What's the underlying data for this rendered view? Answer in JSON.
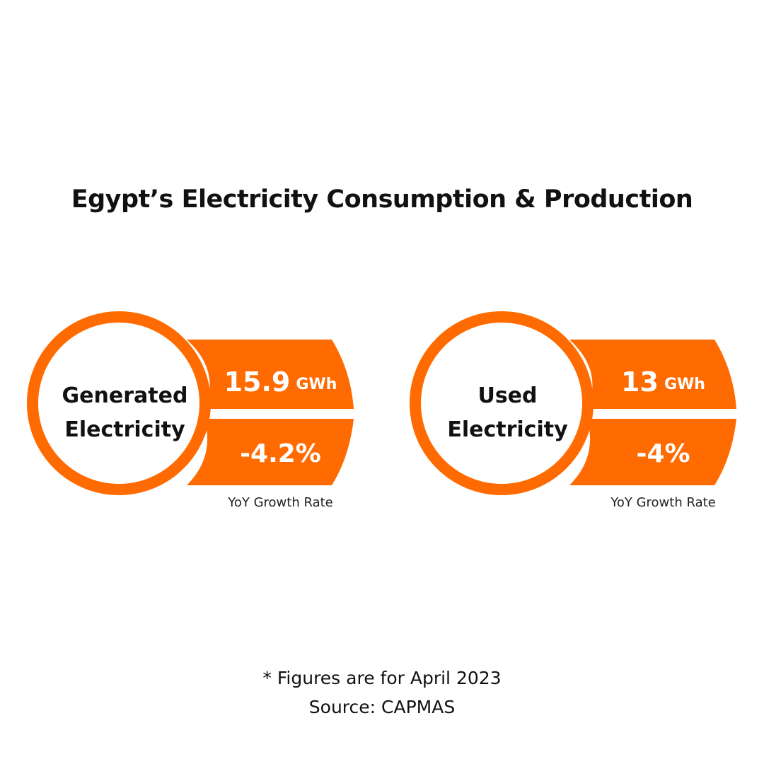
{
  "title": "Egypt’s Electricity Consumption & Production",
  "accent_color": "#ff6b00",
  "cards": [
    {
      "label_line1": "Generated",
      "label_line2": "Electricity",
      "value": "15.9",
      "unit": "GWh",
      "growth": "-4.2%",
      "growth_caption": "YoY Growth Rate"
    },
    {
      "label_line1": "Used",
      "label_line2": "Electricity",
      "value": "13",
      "unit": "GWh",
      "growth": "-4%",
      "growth_caption": "YoY Growth Rate"
    }
  ],
  "footer": {
    "note": "* Figures are for April 2023",
    "source": "Source: CAPMAS"
  }
}
